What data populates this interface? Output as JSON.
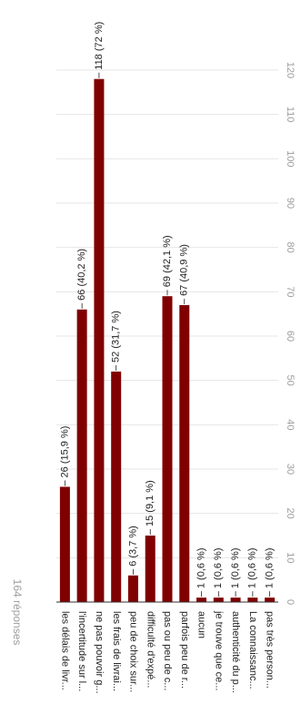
{
  "chart_data": {
    "type": "bar",
    "orientation": "vertical-bars-rotated",
    "response_count": "164 réponses",
    "categories": [
      "les délais de livr...",
      "l'incertitude sur l...",
      "ne pas pouvoir g...",
      "les frais de livrai...",
      "peu de choix sur...",
      "difficulté d'expé...",
      "pas ou peu de c...",
      "parfois peu de r...",
      "aucun",
      "je trouve que ce...",
      "authenticité du p...",
      "La connaissanc...",
      "pas très person..."
    ],
    "values": [
      26,
      66,
      118,
      52,
      6,
      15,
      69,
      67,
      1,
      1,
      1,
      1,
      1
    ],
    "data_labels": [
      "26 (15,9 %)",
      "66 (40,2 %)",
      "118 (72 %)",
      "52 (31,7 %)",
      "6 (3,7 %)",
      "15 (9,1 %)",
      "69 (42,1 %)",
      "67 (40,9 %)",
      "1 (0,6 %)",
      "1 (0,6 %)",
      "1 (0,6 %)",
      "1 (0,6 %)",
      "1 (0,6 %)"
    ],
    "ticks": [
      0,
      10,
      20,
      30,
      40,
      50,
      60,
      70,
      80,
      90,
      100,
      110,
      120
    ],
    "ylim": [
      0,
      120
    ],
    "grid": true,
    "bar_color": "#800000",
    "grid_color": "#e6e6e6",
    "axis_color": "#333333",
    "text_color": "#222222",
    "muted_text_color": "#9e9e9e"
  }
}
